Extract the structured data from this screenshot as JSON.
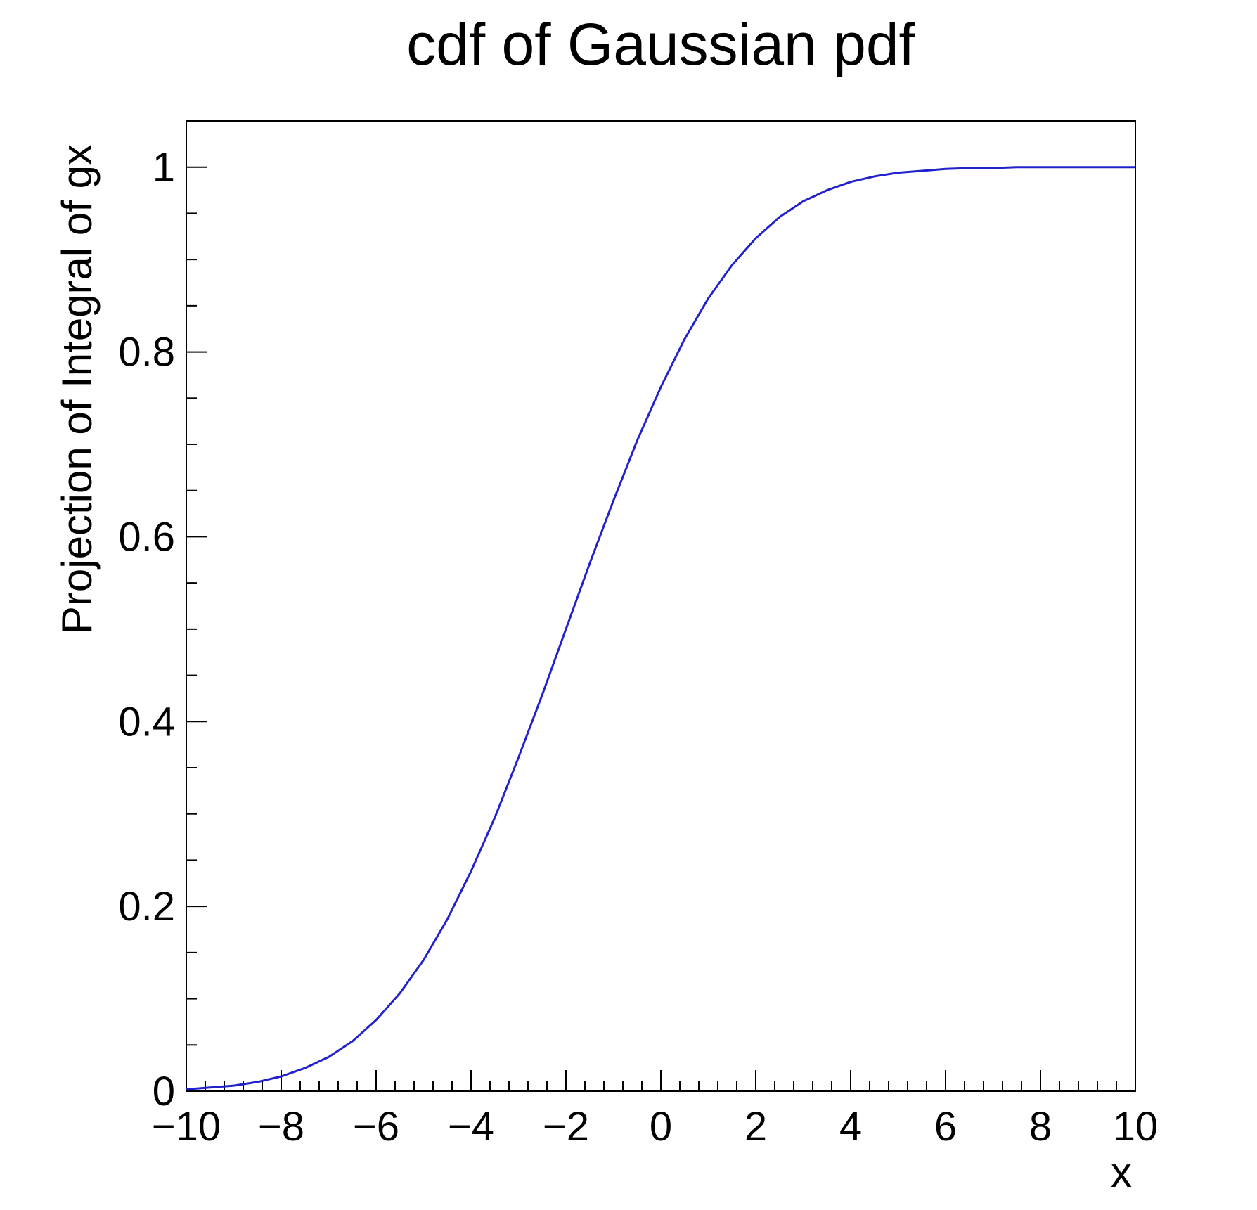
{
  "chart_data": {
    "type": "line",
    "title": "cdf of Gaussian pdf",
    "xlabel": "x",
    "ylabel": "Projection of Integral of gx",
    "xlim": [
      -10,
      10
    ],
    "ylim": [
      0,
      1.05
    ],
    "x_ticks": [
      -10,
      -8,
      -6,
      -4,
      -2,
      0,
      2,
      4,
      6,
      8,
      10
    ],
    "y_ticks": [
      0,
      0.2,
      0.4,
      0.6,
      0.8,
      1
    ],
    "x_minor_step": 0.4,
    "y_minor_step": 0.05,
    "grid": false,
    "legend": "none",
    "frame_color": "#000000",
    "series": [
      {
        "name": "cdf of Gaussian pdf",
        "color": "#2222cc",
        "x": [
          -10,
          -9.5,
          -9,
          -8.5,
          -8,
          -7.5,
          -7,
          -6.5,
          -6,
          -5.5,
          -5,
          -4.5,
          -4,
          -3.5,
          -3,
          -2.5,
          -2,
          -1.5,
          -1,
          -0.5,
          0,
          0.5,
          1,
          1.5,
          2,
          2.5,
          3,
          3.5,
          4,
          4.5,
          5,
          5.5,
          6,
          6.5,
          7,
          7.5,
          8,
          8.5,
          9,
          9.5,
          10
        ],
        "y": [
          0.002,
          0.004,
          0.006,
          0.01,
          0.016,
          0.025,
          0.037,
          0.054,
          0.077,
          0.106,
          0.142,
          0.186,
          0.238,
          0.296,
          0.361,
          0.429,
          0.5,
          0.571,
          0.639,
          0.704,
          0.762,
          0.814,
          0.858,
          0.894,
          0.923,
          0.946,
          0.963,
          0.975,
          0.984,
          0.99,
          0.994,
          0.996,
          0.998,
          0.999,
          0.999,
          1.0,
          1.0,
          1.0,
          1.0,
          1.0,
          1.0
        ]
      }
    ]
  }
}
